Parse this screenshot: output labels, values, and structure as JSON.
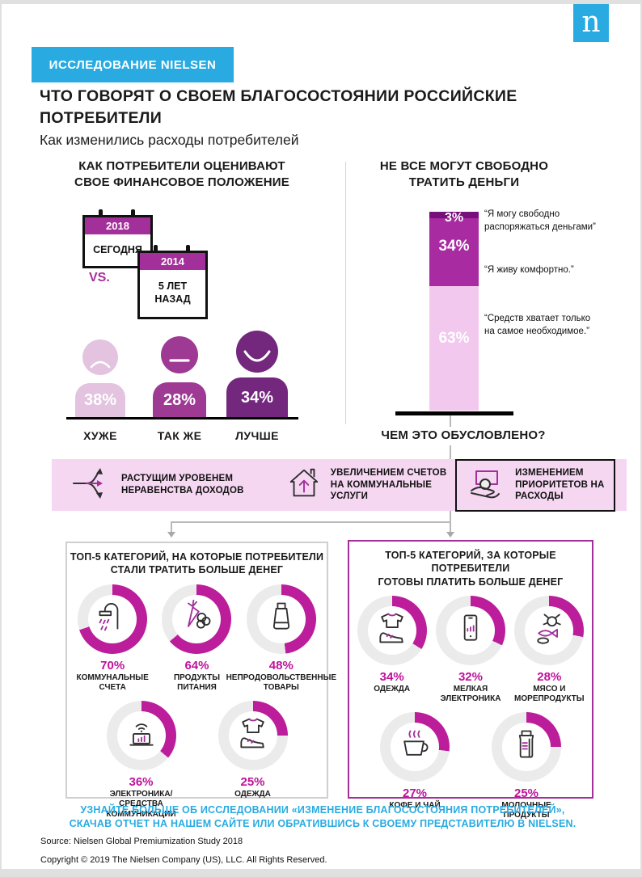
{
  "page": {
    "logo_letter": "n",
    "badge": "ИССЛЕДОВАНИЕ NIELSEN",
    "title_line1": "ЧТО ГОВОРЯТ О СВОЕМ БЛАГОСОСТОЯНИИ  РОССИЙСКИЕ",
    "title_line2": "ПОТРЕБИТЕЛИ",
    "subtitle": "Как изменились расходы потребителей"
  },
  "colors": {
    "cyan": "#29ABE2",
    "magenta_cal": "#A3309A",
    "band_bg": "#F5D7F2",
    "arc": "#BB1D9B",
    "pct_text": "#C0119B",
    "magenta_border": "#A3309A",
    "edge_gray": "#E0E0E0"
  },
  "left_section": {
    "heading_line1": "КАК  ПОТРЕБИТЕЛИ ОЦЕНИВАЮТ",
    "heading_line2": "СВОЕ ФИНАНСОВОЕ ПОЛОЖЕНИЕ",
    "calendar_now": {
      "year": "2018",
      "label": "СЕГОДНЯ"
    },
    "calendar_past": {
      "year": "2014",
      "label_line1": "5 ЛЕТ",
      "label_line2": "НАЗАД"
    },
    "vs": "VS.",
    "figures": [
      {
        "value": "38%",
        "label": "ХУЖЕ",
        "mood": "sad",
        "color": "#E3C3DF"
      },
      {
        "value": "28%",
        "label": "ТАК ЖЕ",
        "mood": "neutral",
        "color": "#9E3A94"
      },
      {
        "value": "34%",
        "label": "ЛУЧШЕ",
        "mood": "happy",
        "color": "#73277D"
      }
    ]
  },
  "right_section": {
    "heading_line1": "НЕ ВСЕ МОГУТ СВОБОДНО",
    "heading_line2": "ТРАТИТЬ ДЕНЬГИ",
    "bar": [
      {
        "value": "3%",
        "pct": 3,
        "color": "#76107A"
      },
      {
        "value": "34%",
        "pct": 34,
        "color": "#A82BA2"
      },
      {
        "value": "63%",
        "pct": 63,
        "color": "#F2C8EE"
      }
    ],
    "quotes": [
      "“Я могу свободно распоряжаться деньгами”",
      "“Я живу комфортно.”",
      "“Средств хватает только на самое необходимое.”"
    ]
  },
  "reasons": {
    "heading": "ЧЕМ ЭТО ОБУСЛОВЛЕНО?",
    "items": [
      {
        "icon": "diverging-arrows-icon",
        "lines": [
          "РАСТУЩИМ  УРОВЕНЕМ",
          "НЕРАВЕНСТВА  ДОХОДОВ"
        ],
        "boxed": false
      },
      {
        "icon": "house-up-arrow-icon",
        "lines": [
          "УВЕЛИЧЕНИЕМ  СЧЕТОВ",
          "НА КОММУНАЛЬНЫЕ",
          "УСЛУГИ"
        ],
        "boxed": false
      },
      {
        "icon": "hand-money-icon",
        "lines": [
          "ИЗМЕНЕНИЕМ",
          "ПРИОРИТЕТОВ  НА",
          "РАСХОДЫ"
        ],
        "boxed": true
      }
    ]
  },
  "top5_spend_more": {
    "heading_line1": "ТОП-5 КАТЕГОРИЙ,  НА КОТОРЫЕ  ПОТРЕБИТЕЛИ",
    "heading_line2": "СТАЛИ  ТРАТИТЬ  БОЛЬШЕ  ДЕНЕГ",
    "items": [
      {
        "icon": "shower-icon",
        "value": "70%",
        "pct": 70,
        "label_lines": [
          "КОММУНАЛЬНЫЕ",
          "СЧЕТА"
        ]
      },
      {
        "icon": "groceries-icon",
        "value": "64%",
        "pct": 64,
        "label_lines": [
          "ПРОДУКТЫ",
          "ПИТАНИЯ"
        ]
      },
      {
        "icon": "cosmetic-tube-icon",
        "value": "48%",
        "pct": 48,
        "label_lines": [
          "НЕПРОДОВОЛЬСТВЕННЫЕ",
          "ТОВАРЫ"
        ]
      },
      {
        "icon": "laptop-wifi-icon",
        "value": "36%",
        "pct": 36,
        "label_lines": [
          "ЭЛЕКТРОНИКА/",
          "СРЕДСТВА",
          "КОММУНИКАЦИИ"
        ]
      },
      {
        "icon": "clothing-icon",
        "value": "25%",
        "pct": 25,
        "label_lines": [
          "ОДЕЖДА"
        ]
      }
    ]
  },
  "top5_pay_more": {
    "heading_line1": "ТОП-5 КАТЕГОРИЙ,  ЗА КОТОРЫЕ  ПОТРЕБИТЕЛИ",
    "heading_line2": "ГОТОВЫ  ПЛАТИТЬ  БОЛЬШЕ  ДЕНЕГ",
    "items": [
      {
        "icon": "clothing-icon",
        "value": "34%",
        "pct": 34,
        "label_lines": [
          "ОДЕЖДА"
        ]
      },
      {
        "icon": "smartphone-icon",
        "value": "32%",
        "pct": 32,
        "label_lines": [
          "МЕЛКАЯ",
          "ЭЛЕКТРОНИКА"
        ]
      },
      {
        "icon": "seafood-icon",
        "value": "28%",
        "pct": 28,
        "label_lines": [
          "МЯСО И",
          "МОРЕПРОДУКТЫ"
        ]
      },
      {
        "icon": "coffee-cup-icon",
        "value": "27%",
        "pct": 27,
        "label_lines": [
          "КОФЕ  И ЧАЙ"
        ]
      },
      {
        "icon": "milk-carton-icon",
        "value": "25%",
        "pct": 25,
        "label_lines": [
          "МОЛОЧНЫЕ",
          "ПРОДУКТЫ"
        ]
      }
    ]
  },
  "footer": {
    "cta_line1": "УЗНАЙТЕ  БОЛЬШЕ  ОБ  ИССЛЕДОВАНИИ  «ИЗМЕНЕНИЕ  БЛАГОСОСТОЯНИЯ  ПОТРЕБИТЕЛЕЙ»,",
    "cta_line2": "СКАЧАВ  ОТЧЕТ  НА  НАШЕМ  САЙТЕ  ИЛИ  ОБРАТИВШИСЬ  К СВОЕМУ  ПРЕДСТАВИТЕЛЮ  В NIELSEN.",
    "source": "Source: Nielsen  Global  Premiumization  Study 2018",
    "copyright": "Copyright © 2019 The Nielsen  Company  (US), LLC.  All Rights Reserved."
  },
  "chart_data": [
    {
      "type": "bar",
      "title": "КАК ПОТРЕБИТЕЛИ ОЦЕНИВАЮТ СВОЕ ФИНАНСОВОЕ ПОЛОЖЕНИЕ (2018 СЕГОДНЯ vs. 2014 5 ЛЕТ НАЗАД)",
      "categories": [
        "ХУЖЕ",
        "ТАК ЖЕ",
        "ЛУЧШЕ"
      ],
      "values": [
        38,
        28,
        34
      ],
      "unit": "%"
    },
    {
      "type": "bar",
      "subtype": "stacked-single-column",
      "title": "НЕ ВСЕ МОГУТ СВОБОДНО ТРАТИТЬ ДЕНЬГИ",
      "categories": [
        "Я могу свободно распоряжаться деньгами",
        "Я живу комфортно.",
        "Средств хватает только на самое необходимое."
      ],
      "values": [
        3,
        34,
        63
      ],
      "unit": "%"
    },
    {
      "type": "pie",
      "subtype": "donut-gauges",
      "title": "ТОП-5 КАТЕГОРИЙ, НА КОТОРЫЕ ПОТРЕБИТЕЛИ СТАЛИ ТРАТИТЬ БОЛЬШЕ ДЕНЕГ",
      "categories": [
        "КОММУНАЛЬНЫЕ СЧЕТА",
        "ПРОДУКТЫ ПИТАНИЯ",
        "НЕПРОДОВОЛЬСТВЕННЫЕ ТОВАРЫ",
        "ЭЛЕКТРОНИКА/СРЕДСТВА КОММУНИКАЦИИ",
        "ОДЕЖДА"
      ],
      "values": [
        70,
        64,
        48,
        36,
        25
      ],
      "unit": "%"
    },
    {
      "type": "pie",
      "subtype": "donut-gauges",
      "title": "ТОП-5 КАТЕГОРИЙ, ЗА КОТОРЫЕ ПОТРЕБИТЕЛИ ГОТОВЫ ПЛАТИТЬ БОЛЬШЕ ДЕНЕГ",
      "categories": [
        "ОДЕЖДА",
        "МЕЛКАЯ ЭЛЕКТРОНИКА",
        "МЯСО И МОРЕПРОДУКТЫ",
        "КОФЕ И ЧАЙ",
        "МОЛОЧНЫЕ ПРОДУКТЫ"
      ],
      "values": [
        34,
        32,
        28,
        27,
        25
      ],
      "unit": "%"
    }
  ]
}
